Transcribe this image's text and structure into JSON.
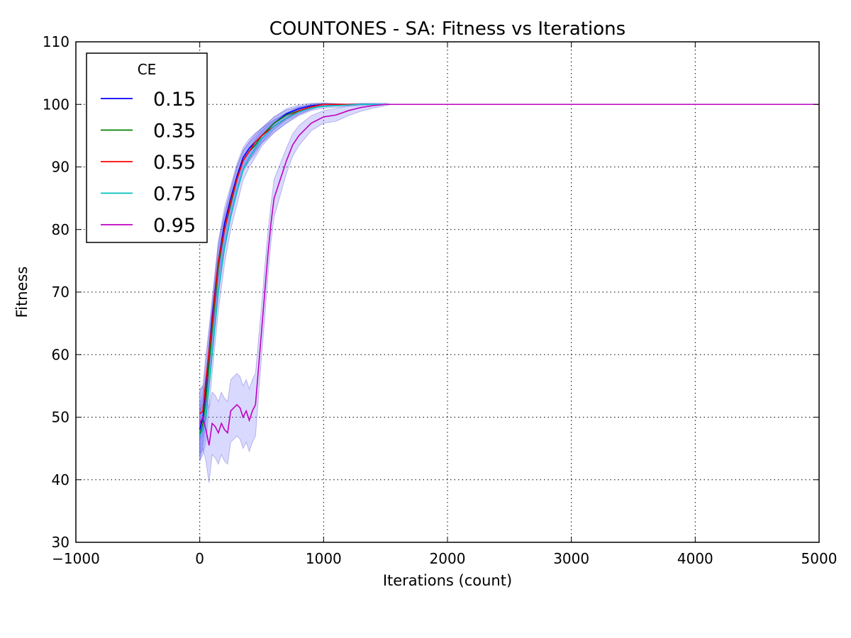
{
  "chart_data": {
    "type": "line",
    "title": "COUNTONES - SA: Fitness vs Iterations",
    "xlabel": "Iterations (count)",
    "ylabel": "Fitness",
    "xlim": [
      -1000,
      5000
    ],
    "ylim": [
      30,
      110
    ],
    "xticks": [
      -1000,
      0,
      1000,
      2000,
      3000,
      4000,
      5000
    ],
    "xtick_labels": [
      "−1000",
      "0",
      "1000",
      "2000",
      "3000",
      "4000",
      "5000"
    ],
    "yticks": [
      30,
      40,
      50,
      60,
      70,
      80,
      90,
      100,
      110
    ],
    "ytick_labels": [
      "30",
      "40",
      "50",
      "60",
      "70",
      "80",
      "90",
      "100",
      "110"
    ],
    "grid": true,
    "legend": {
      "title": "CE",
      "placement": "top-left"
    },
    "band_color": "#8080ff",
    "series": [
      {
        "name": "0.15",
        "color": "#0000ff",
        "x": [
          0,
          25,
          50,
          100,
          150,
          200,
          250,
          300,
          350,
          400,
          450,
          500,
          600,
          700,
          800,
          900,
          1000,
          1100,
          1200,
          5000
        ],
        "y": [
          48,
          50,
          55,
          66,
          75,
          81,
          85,
          88.5,
          91.5,
          93,
          94,
          95,
          97,
          98.5,
          99.3,
          99.8,
          100,
          100,
          100,
          100
        ],
        "band": [
          4,
          4,
          4,
          3,
          3,
          2.5,
          2,
          2,
          1.6,
          1.5,
          1.4,
          1.2,
          1,
          0.8,
          0.6,
          0.4,
          0.2,
          0.1,
          0,
          0
        ]
      },
      {
        "name": "0.35",
        "color": "#008000",
        "x": [
          0,
          25,
          50,
          100,
          150,
          200,
          250,
          300,
          350,
          400,
          450,
          500,
          600,
          700,
          800,
          900,
          1000,
          1100,
          1200,
          5000
        ],
        "y": [
          47,
          49,
          53,
          64,
          74,
          80,
          84,
          88,
          91,
          92.5,
          93.5,
          95,
          97,
          98.3,
          99,
          99.6,
          100,
          100,
          100,
          100
        ],
        "band": [
          4,
          4,
          4,
          3,
          3,
          2.5,
          2,
          2,
          1.6,
          1.5,
          1.4,
          1.2,
          1,
          0.8,
          0.6,
          0.4,
          0.2,
          0.1,
          0,
          0
        ]
      },
      {
        "name": "0.55",
        "color": "#ff0000",
        "x": [
          0,
          25,
          50,
          100,
          150,
          200,
          250,
          300,
          350,
          400,
          450,
          500,
          600,
          700,
          800,
          900,
          1000,
          1100,
          1200,
          5000
        ],
        "y": [
          50.5,
          51,
          56,
          65,
          75,
          80,
          84.5,
          88,
          91,
          92.5,
          94,
          95,
          96.5,
          97.8,
          99,
          99.6,
          100,
          100,
          100,
          100
        ],
        "band": [
          4,
          4,
          4,
          3,
          3,
          2.5,
          2,
          2,
          1.6,
          1.5,
          1.4,
          1.2,
          1,
          0.8,
          0.6,
          0.4,
          0.2,
          0.1,
          0,
          0
        ]
      },
      {
        "name": "0.75",
        "color": "#00bfbf",
        "x": [
          0,
          25,
          50,
          100,
          150,
          200,
          250,
          300,
          350,
          400,
          450,
          500,
          600,
          700,
          800,
          900,
          1000,
          1100,
          1200,
          1300,
          1500,
          5000
        ],
        "y": [
          47,
          48,
          50,
          60,
          70,
          77,
          82,
          86,
          89.5,
          91.5,
          93,
          94.5,
          96.5,
          97.8,
          98.8,
          99.4,
          99.7,
          99.8,
          99.9,
          100,
          100,
          100
        ],
        "band": [
          4,
          4,
          4,
          3,
          3,
          2.5,
          2,
          2,
          1.6,
          1.5,
          1.4,
          1.2,
          1,
          0.8,
          0.6,
          0.4,
          0.3,
          0.3,
          0.2,
          0.2,
          0,
          0
        ]
      },
      {
        "name": "0.95",
        "color": "#bf00bf",
        "x": [
          0,
          25,
          50,
          75,
          100,
          125,
          150,
          175,
          200,
          225,
          250,
          275,
          300,
          325,
          350,
          375,
          400,
          425,
          450,
          475,
          500,
          525,
          550,
          575,
          600,
          650,
          700,
          750,
          800,
          900,
          1000,
          1100,
          1200,
          1300,
          1400,
          1500,
          1550,
          5000
        ],
        "y": [
          49,
          50,
          48,
          45.5,
          49,
          48.5,
          47.5,
          49,
          48,
          47.5,
          51,
          51.5,
          52,
          51.5,
          50,
          51,
          49.5,
          51,
          52,
          58,
          64,
          70,
          76,
          81,
          85,
          88,
          91,
          93.5,
          95,
          97,
          98,
          98.3,
          99,
          99.5,
          99.8,
          100,
          100,
          100
        ],
        "band": [
          5,
          5,
          5,
          6,
          5,
          5,
          5,
          5,
          5,
          5,
          5,
          5,
          5,
          5,
          5,
          5,
          5,
          5,
          5,
          4.5,
          4,
          4,
          3.5,
          3,
          3,
          2.5,
          2,
          1.8,
          1.6,
          1.2,
          1,
          1,
          0.8,
          0.6,
          0.4,
          0.2,
          0,
          0
        ]
      }
    ]
  }
}
